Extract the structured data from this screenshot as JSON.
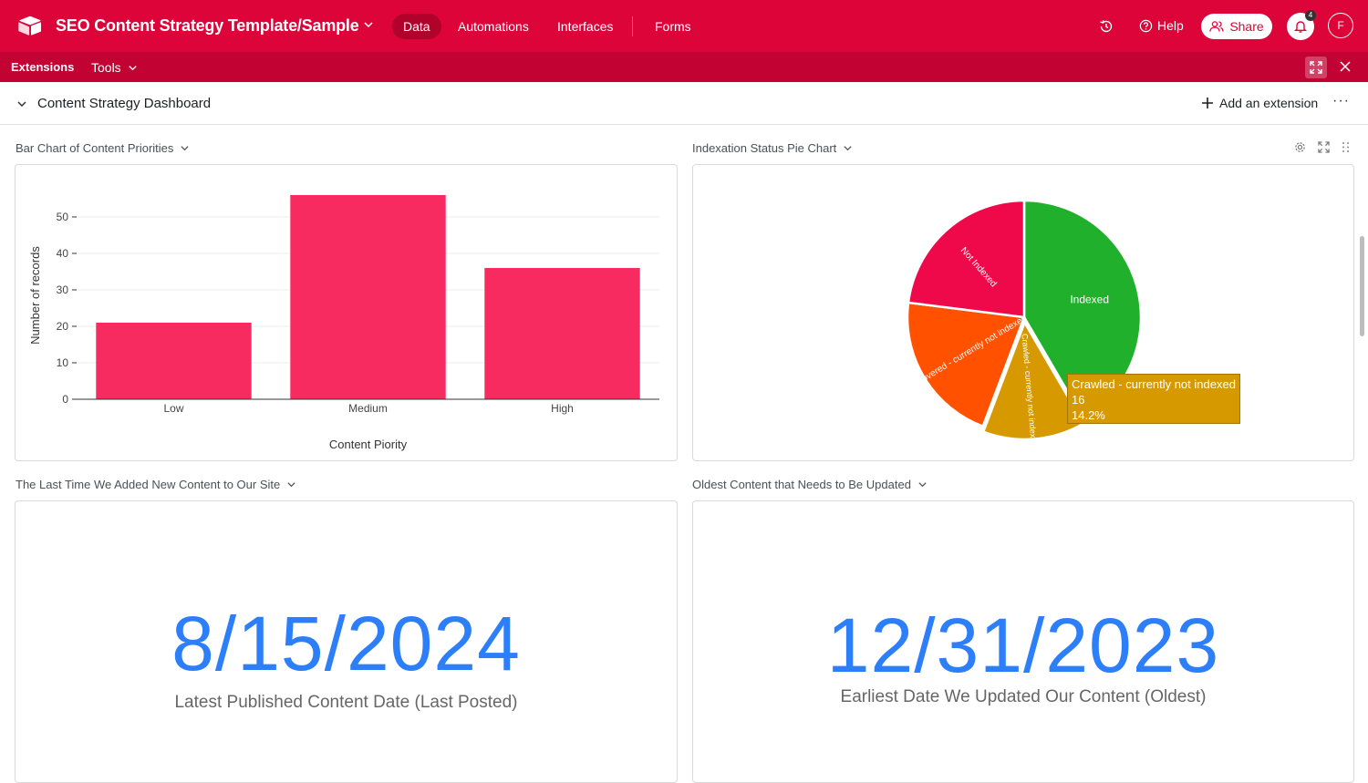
{
  "topbar": {
    "base_title": "SEO Content Strategy Template/Sample",
    "tabs": [
      {
        "label": "Data",
        "active": true
      },
      {
        "label": "Automations",
        "active": false
      },
      {
        "label": "Interfaces",
        "active": false
      },
      {
        "label": "Forms",
        "active": false
      }
    ],
    "help_label": "Help",
    "share_label": "Share",
    "notification_count": "4",
    "avatar_initial": "F",
    "brand_color": "#dc0438"
  },
  "subbar": {
    "extensions_label": "Extensions",
    "tools_label": "Tools"
  },
  "dashboard": {
    "title": "Content Strategy Dashboard",
    "add_extension_label": "Add an extension"
  },
  "bar_panel": {
    "label": "Bar Chart of Content Priorities"
  },
  "pie_panel": {
    "label": "Indexation Status Pie Chart",
    "tooltip": {
      "name": "Crawled - currently not indexed",
      "count": "16",
      "percent": "14.2%"
    }
  },
  "last_added_panel": {
    "label": "The Last Time We Added New Content to Our Site",
    "value": "8/15/2024",
    "caption": "Latest Published Content Date (Last Posted)"
  },
  "oldest_panel": {
    "label": "Oldest Content that Needs to Be Updated",
    "value": "12/31/2023",
    "caption": "Earliest Date We Updated Our Content (Oldest)"
  },
  "chart_data": [
    {
      "type": "bar",
      "categories": [
        "Low",
        "Medium",
        "High"
      ],
      "values": [
        21,
        56,
        36
      ],
      "xlabel": "Content Piority",
      "ylabel": "Number of records",
      "ylim": [
        0,
        58
      ],
      "yticks": [
        0,
        10,
        20,
        30,
        40,
        50
      ],
      "color": "#f82b60",
      "grid": true
    },
    {
      "type": "pie",
      "slices": [
        {
          "label": "Indexed",
          "value": 47,
          "color": "#20b02c"
        },
        {
          "label": "Crawled - currently not indexed",
          "value": 16,
          "color": "#d69a00"
        },
        {
          "label": "Discovered - currently not indexed",
          "value": 24,
          "color": "#ff5100"
        },
        {
          "label": "Not Indexed",
          "value": 26,
          "color": "#f0094a"
        }
      ]
    }
  ]
}
